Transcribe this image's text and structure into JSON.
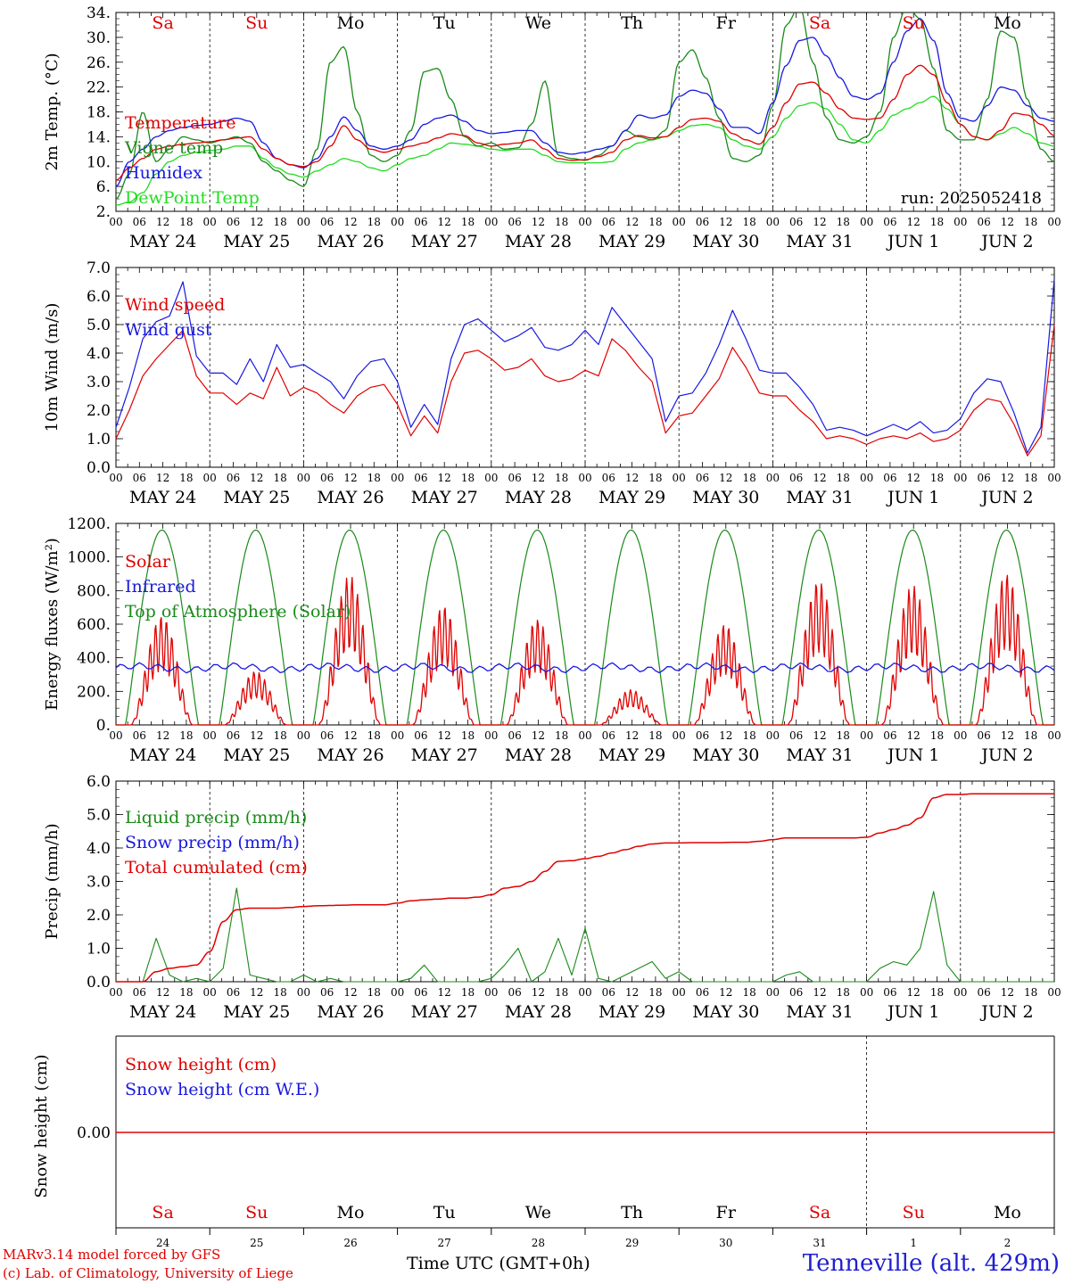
{
  "footer": {
    "model": "MARv3.14 model forced by GFS",
    "credit": "(c) Lab. of Climatology, University of Liege",
    "time_label": "Time UTC (GMT+0h)",
    "station": "Tenneville (alt. 429m)"
  },
  "colors": {
    "red": "#e00000",
    "blue": "#1818e0",
    "dark_green": "#1a8a1a",
    "light_green": "#22dd22",
    "black": "#000000"
  },
  "chart_data": {
    "days": [
      "Sa",
      "Su",
      "Mo",
      "Tu",
      "We",
      "Th",
      "Fr",
      "Sa",
      "Su",
      "Mo"
    ],
    "weekend_flags": [
      true,
      true,
      false,
      false,
      false,
      false,
      false,
      true,
      true,
      false
    ],
    "dates": [
      "MAY 24",
      "MAY 25",
      "MAY 26",
      "MAY 27",
      "MAY 28",
      "MAY 29",
      "MAY 30",
      "MAY 31",
      "JUN  1",
      "JUN  2"
    ],
    "date_numbers": [
      "24",
      "25",
      "26",
      "27",
      "28",
      "29",
      "30",
      "31",
      "1",
      "2"
    ],
    "hour_ticks": [
      "00",
      "06",
      "12",
      "18"
    ],
    "panels": [
      {
        "id": "temperature",
        "type": "line",
        "ylabel": "2m Temp. (°C)",
        "ylim": [
          2,
          34
        ],
        "yticks": [
          "2.",
          "6.",
          "10.",
          "14.",
          "18.",
          "22.",
          "26.",
          "30.",
          "34."
        ],
        "annotation": "run: 2025052418",
        "series": [
          {
            "name": "Temperature",
            "color": "red",
            "values": [
              7,
              9,
              10.5,
              12,
              12.5,
              12.8,
              13,
              13.2,
              13.5,
              13.8,
              14,
              12,
              10.5,
              9.5,
              9.2,
              10,
              12.5,
              15.8,
              13.5,
              12,
              11.5,
              12,
              12.5,
              13,
              13.8,
              14.5,
              14.2,
              13,
              12.5,
              12.8,
              13,
              13.5,
              12,
              10.5,
              10.2,
              10.3,
              10.8,
              11.5,
              13.5,
              14.2,
              13.8,
              14,
              15.5,
              16.8,
              17,
              16.5,
              14.5,
              13.5,
              12.8,
              15.5,
              19.5,
              22.5,
              22.8,
              21,
              18.5,
              17,
              16.8,
              17,
              20,
              24,
              25.5,
              24,
              19.5,
              16,
              14,
              13.5,
              15,
              17.8,
              17.5,
              16,
              14.2
            ]
          },
          {
            "name": "Vigne temp",
            "color": "dark_green",
            "values": [
              4,
              8,
              18,
              10,
              12,
              14,
              13.5,
              13,
              13.5,
              14,
              13,
              10,
              8.5,
              7,
              6,
              12,
              26,
              28.5,
              18,
              11,
              10,
              11,
              15,
              24.5,
              25,
              20,
              14,
              12.5,
              13,
              12,
              12.2,
              16,
              23,
              11,
              10.5,
              10.2,
              11,
              12.5,
              15,
              14,
              13.5,
              15,
              26,
              28,
              23.5,
              17,
              10.5,
              10,
              11,
              19,
              32,
              35,
              26,
              17,
              13.5,
              13,
              14,
              18,
              30,
              35,
              33,
              25,
              15,
              13.5,
              13.5,
              20,
              31,
              30,
              20,
              12,
              10
            ]
          },
          {
            "name": "Humidex",
            "color": "blue",
            "values": [
              6,
              10,
              12,
              14,
              15,
              15.5,
              15.8,
              16,
              16.5,
              17,
              16.5,
              13,
              10.5,
              9.5,
              9,
              10.5,
              14,
              17.2,
              15,
              12.5,
              12,
              12.5,
              13.5,
              16,
              17,
              17.5,
              16.5,
              15,
              14.5,
              14.7,
              15,
              15,
              13,
              11.5,
              11.2,
              11.5,
              12,
              12.5,
              15,
              17.5,
              17,
              17.5,
              20.5,
              21.5,
              21,
              18.5,
              15.5,
              15.5,
              14.5,
              19.5,
              25.5,
              29.5,
              30,
              27,
              23.5,
              20.5,
              20,
              21,
              26,
              31,
              33,
              29.5,
              21,
              17,
              16.5,
              19,
              22,
              21.5,
              19,
              17,
              16.5
            ]
          },
          {
            "name": "DewPoint Temp",
            "color": "light_green",
            "values": [
              3,
              3.5,
              5,
              8,
              10,
              11,
              11.5,
              11.8,
              12,
              12.5,
              12.5,
              10.5,
              9,
              8,
              7.5,
              8.5,
              9.5,
              10.5,
              10,
              9,
              8.5,
              9.5,
              10.5,
              11,
              12,
              13,
              12.8,
              12.5,
              12,
              11.8,
              12,
              12,
              11,
              10,
              9.8,
              9.8,
              9.8,
              10,
              12,
              13,
              13.5,
              14,
              15,
              15.8,
              16,
              15.5,
              13.5,
              12.5,
              12,
              14,
              17,
              19,
              19.5,
              18.5,
              16,
              13.5,
              13,
              15,
              17.5,
              18.5,
              19.5,
              20.5,
              18.5,
              16,
              14,
              13.5,
              14.5,
              15.5,
              14.5,
              13,
              12.5
            ]
          }
        ]
      },
      {
        "id": "wind",
        "type": "line",
        "ylabel": "10m Wind (m/s)",
        "ylim": [
          0,
          7
        ],
        "yticks": [
          "0.0",
          "1.0",
          "2.0",
          "3.0",
          "4.0",
          "5.0",
          "6.0",
          "7.0"
        ],
        "reference_line": 5,
        "series": [
          {
            "name": "Wind speed",
            "color": "red",
            "values": [
              1,
              2,
              3.2,
              3.8,
              4.3,
              4.8,
              3.2,
              2.6,
              2.6,
              2.2,
              2.6,
              2.4,
              3.5,
              2.5,
              2.8,
              2.6,
              2.2,
              1.9,
              2.5,
              2.8,
              2.9,
              2.2,
              1.1,
              1.8,
              1.2,
              3,
              4,
              4.1,
              3.8,
              3.4,
              3.5,
              3.8,
              3.2,
              3.0,
              3.1,
              3.4,
              3.2,
              4.5,
              4.1,
              3.5,
              3.0,
              1.2,
              1.8,
              1.9,
              2.5,
              3.1,
              4.2,
              3.5,
              2.6,
              2.5,
              2.5,
              2.0,
              1.6,
              1.0,
              1.1,
              1.0,
              0.8,
              1.0,
              1.1,
              1.0,
              1.2,
              0.9,
              1.0,
              1.3,
              2.0,
              2.4,
              2.3,
              1.5,
              0.4,
              1.1,
              5.0
            ]
          },
          {
            "name": "Wind gust",
            "color": "blue",
            "values": [
              1.4,
              2.8,
              4.5,
              5.1,
              5.3,
              6.5,
              3.9,
              3.3,
              3.3,
              2.9,
              3.8,
              3.0,
              4.3,
              3.5,
              3.6,
              3.3,
              3.0,
              2.4,
              3.2,
              3.7,
              3.8,
              3.0,
              1.4,
              2.2,
              1.5,
              3.8,
              5.0,
              5.2,
              4.8,
              4.4,
              4.6,
              4.9,
              4.2,
              4.1,
              4.3,
              4.8,
              4.3,
              5.6,
              5.0,
              4.4,
              3.8,
              1.6,
              2.5,
              2.6,
              3.3,
              4.3,
              5.5,
              4.5,
              3.4,
              3.3,
              3.3,
              2.8,
              2.2,
              1.3,
              1.4,
              1.3,
              1.1,
              1.3,
              1.5,
              1.3,
              1.6,
              1.2,
              1.3,
              1.7,
              2.6,
              3.1,
              3.0,
              1.9,
              0.5,
              1.4,
              6.6
            ]
          }
        ]
      },
      {
        "id": "energy",
        "type": "line",
        "ylabel": "Energy fluxes (W/m²)",
        "ylim": [
          0,
          1200
        ],
        "yticks": [
          "0.",
          "200.",
          "400.",
          "600.",
          "800.",
          "1000.",
          "1200."
        ],
        "series": [
          {
            "name": "Solar",
            "color": "red",
            "day_peaks": [
              650,
              320,
              890,
              710,
              630,
              210,
              600,
              860,
              830,
              900
            ]
          },
          {
            "name": "Infrared",
            "color": "blue",
            "mean": 340,
            "amplitude": 30
          },
          {
            "name": "Top of Atmosphere (Solar)",
            "color": "dark_green",
            "peak": 1160
          }
        ]
      },
      {
        "id": "precip",
        "type": "line",
        "ylabel": "Precip (mm/h)",
        "ylim": [
          0,
          6
        ],
        "yticks": [
          "0.0",
          "1.0",
          "2.0",
          "3.0",
          "4.0",
          "5.0",
          "6.0"
        ],
        "series": [
          {
            "name": "Liquid precip (mm/h)",
            "color": "dark_green",
            "values": [
              0,
              0,
              0,
              1.3,
              0.2,
              0,
              0.1,
              0,
              0.4,
              2.8,
              0.2,
              0.1,
              0,
              0,
              0.2,
              0,
              0.1,
              0,
              0,
              0,
              0,
              0,
              0.1,
              0.5,
              0,
              0,
              0,
              0,
              0.1,
              0.5,
              1.0,
              0,
              0.3,
              1.3,
              0.2,
              1.6,
              0.1,
              0,
              0.2,
              0.4,
              0.6,
              0.1,
              0.3,
              0,
              0,
              0,
              0,
              0,
              0,
              0,
              0.2,
              0.3,
              0,
              0,
              0,
              0,
              0,
              0.4,
              0.6,
              0.5,
              1.0,
              2.7,
              0.5,
              0,
              0,
              0,
              0,
              0,
              0,
              0,
              0
            ]
          },
          {
            "name": "Snow precip (mm/h)",
            "color": "blue",
            "values": [
              0
            ]
          },
          {
            "name": "Total cumulated (cm)",
            "color": "red",
            "values": [
              0,
              0,
              0,
              0.3,
              0.4,
              0.45,
              0.5,
              0.9,
              1.8,
              2.15,
              2.2,
              2.2,
              2.2,
              2.22,
              2.25,
              2.27,
              2.28,
              2.29,
              2.3,
              2.3,
              2.3,
              2.35,
              2.42,
              2.45,
              2.47,
              2.5,
              2.5,
              2.53,
              2.6,
              2.8,
              2.85,
              3.0,
              3.3,
              3.6,
              3.62,
              3.68,
              3.75,
              3.85,
              3.95,
              4.05,
              4.12,
              4.15,
              4.15,
              4.16,
              4.16,
              4.16,
              4.17,
              4.17,
              4.2,
              4.25,
              4.3,
              4.3,
              4.3,
              4.3,
              4.3,
              4.3,
              4.32,
              4.45,
              4.55,
              4.68,
              4.9,
              5.5,
              5.6,
              5.6,
              5.62,
              5.62,
              5.62,
              5.62,
              5.62,
              5.62,
              5.62
            ]
          }
        ]
      },
      {
        "id": "snow",
        "type": "line",
        "ylabel": "Snow height (cm)",
        "yticks": [
          "0.00"
        ],
        "series": [
          {
            "name": "Snow height (cm)",
            "color": "red",
            "values": [
              0
            ]
          },
          {
            "name": "Snow height (cm W.E.)",
            "color": "blue",
            "values": [
              0
            ]
          }
        ]
      }
    ]
  }
}
